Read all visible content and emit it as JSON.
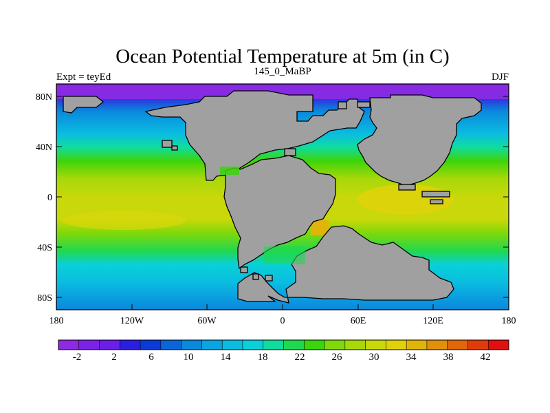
{
  "title": "Ocean Potential Temperature at 5m (in C)",
  "subtitle_left": "Expt = teyEd",
  "subtitle_center": "145_0_MaBP",
  "subtitle_right": "DJF",
  "lat_labels": [
    "80N",
    "40N",
    "0",
    "40S",
    "80S"
  ],
  "lon_labels": [
    "180",
    "120W",
    "60W",
    "0",
    "60E",
    "120E",
    "180"
  ],
  "colorbar": {
    "labels": [
      "-2",
      "2",
      "6",
      "10",
      "14",
      "18",
      "22",
      "26",
      "30",
      "34",
      "38",
      "42"
    ],
    "colors": [
      "#8c2be2",
      "#7a22e6",
      "#6a1ee8",
      "#2a1ee0",
      "#0a3ad8",
      "#0a66d8",
      "#0a88dc",
      "#0aa4e0",
      "#0abce0",
      "#0ad0d8",
      "#10dca0",
      "#20d850",
      "#3cd40a",
      "#80d80a",
      "#a8d80a",
      "#c8d80a",
      "#e0d20a",
      "#e0b40a",
      "#e0900a",
      "#e0680a",
      "#e03c0a",
      "#e01010"
    ]
  },
  "land_color": "#a0a0a0"
}
